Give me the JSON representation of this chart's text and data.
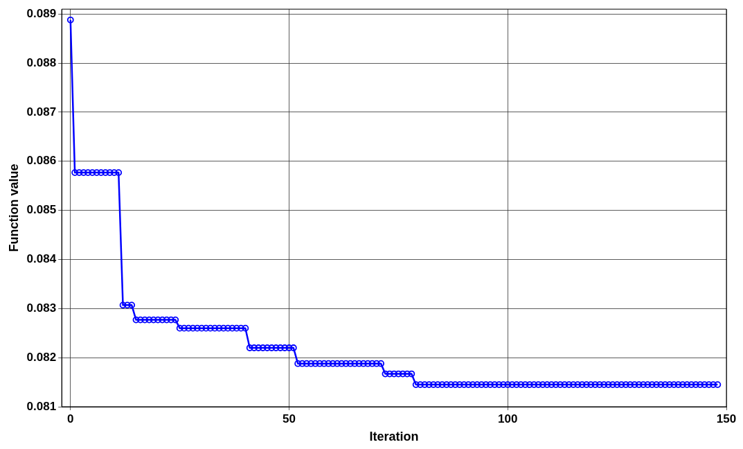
{
  "chart_data": {
    "type": "line",
    "xlabel": "Iteration",
    "ylabel": "Function value",
    "xlim": [
      -2,
      150
    ],
    "xticks": [
      0,
      50,
      100,
      150
    ],
    "ylim": [
      0.081,
      0.0891
    ],
    "yticks": [
      0.081,
      0.082,
      0.083,
      0.084,
      0.085,
      0.086,
      0.087,
      0.088,
      0.089
    ],
    "grid": true,
    "marker": "circle",
    "line_style": "solid",
    "x": [
      0,
      1,
      2,
      3,
      4,
      5,
      6,
      7,
      8,
      9,
      10,
      11,
      12,
      13,
      14,
      15,
      16,
      17,
      18,
      19,
      20,
      21,
      22,
      23,
      24,
      25,
      26,
      27,
      28,
      29,
      30,
      31,
      32,
      33,
      34,
      35,
      36,
      37,
      38,
      39,
      40,
      41,
      42,
      43,
      44,
      45,
      46,
      47,
      48,
      49,
      50,
      51,
      52,
      53,
      54,
      55,
      56,
      57,
      58,
      59,
      60,
      61,
      62,
      63,
      64,
      65,
      66,
      67,
      68,
      69,
      70,
      71,
      72,
      73,
      74,
      75,
      76,
      77,
      78,
      79,
      80,
      81,
      82,
      83,
      84,
      85,
      86,
      87,
      88,
      89,
      90,
      91,
      92,
      93,
      94,
      95,
      96,
      97,
      98,
      99,
      100,
      101,
      102,
      103,
      104,
      105,
      106,
      107,
      108,
      109,
      110,
      111,
      112,
      113,
      114,
      115,
      116,
      117,
      118,
      119,
      120,
      121,
      122,
      123,
      124,
      125,
      126,
      127,
      128,
      129,
      130,
      131,
      132,
      133,
      134,
      135,
      136,
      137,
      138,
      139,
      140,
      141,
      142,
      143,
      144,
      145,
      146,
      147,
      148
    ],
    "series": [
      {
        "color": "#0000ff",
        "values": [
          0.08888,
          0.08577,
          0.08577,
          0.08577,
          0.08577,
          0.08577,
          0.08577,
          0.08577,
          0.08577,
          0.08577,
          0.08577,
          0.08577,
          0.08307,
          0.08307,
          0.08307,
          0.08277,
          0.08277,
          0.08277,
          0.08277,
          0.08277,
          0.08277,
          0.08277,
          0.08277,
          0.08277,
          0.08277,
          0.0826,
          0.0826,
          0.0826,
          0.0826,
          0.0826,
          0.0826,
          0.0826,
          0.0826,
          0.0826,
          0.0826,
          0.0826,
          0.0826,
          0.0826,
          0.0826,
          0.0826,
          0.0826,
          0.0822,
          0.0822,
          0.0822,
          0.0822,
          0.0822,
          0.0822,
          0.0822,
          0.0822,
          0.0822,
          0.0822,
          0.0822,
          0.08188,
          0.08188,
          0.08188,
          0.08188,
          0.08188,
          0.08188,
          0.08188,
          0.08188,
          0.08188,
          0.08188,
          0.08188,
          0.08188,
          0.08188,
          0.08188,
          0.08188,
          0.08188,
          0.08188,
          0.08188,
          0.08188,
          0.08188,
          0.08167,
          0.08167,
          0.08167,
          0.08167,
          0.08167,
          0.08167,
          0.08167,
          0.08145,
          0.08145,
          0.08145,
          0.08145,
          0.08145,
          0.08145,
          0.08145,
          0.08145,
          0.08145,
          0.08145,
          0.08145,
          0.08145,
          0.08145,
          0.08145,
          0.08145,
          0.08145,
          0.08145,
          0.08145,
          0.08145,
          0.08145,
          0.08145,
          0.08145,
          0.08145,
          0.08145,
          0.08145,
          0.08145,
          0.08145,
          0.08145,
          0.08145,
          0.08145,
          0.08145,
          0.08145,
          0.08145,
          0.08145,
          0.08145,
          0.08145,
          0.08145,
          0.08145,
          0.08145,
          0.08145,
          0.08145,
          0.08145,
          0.08145,
          0.08145,
          0.08145,
          0.08145,
          0.08145,
          0.08145,
          0.08145,
          0.08145,
          0.08145,
          0.08145,
          0.08145,
          0.08145,
          0.08145,
          0.08145,
          0.08145,
          0.08145,
          0.08145,
          0.08145,
          0.08145,
          0.08145,
          0.08145,
          0.08145,
          0.08145,
          0.08145,
          0.08145,
          0.08145,
          0.08145,
          0.08145
        ]
      }
    ]
  }
}
